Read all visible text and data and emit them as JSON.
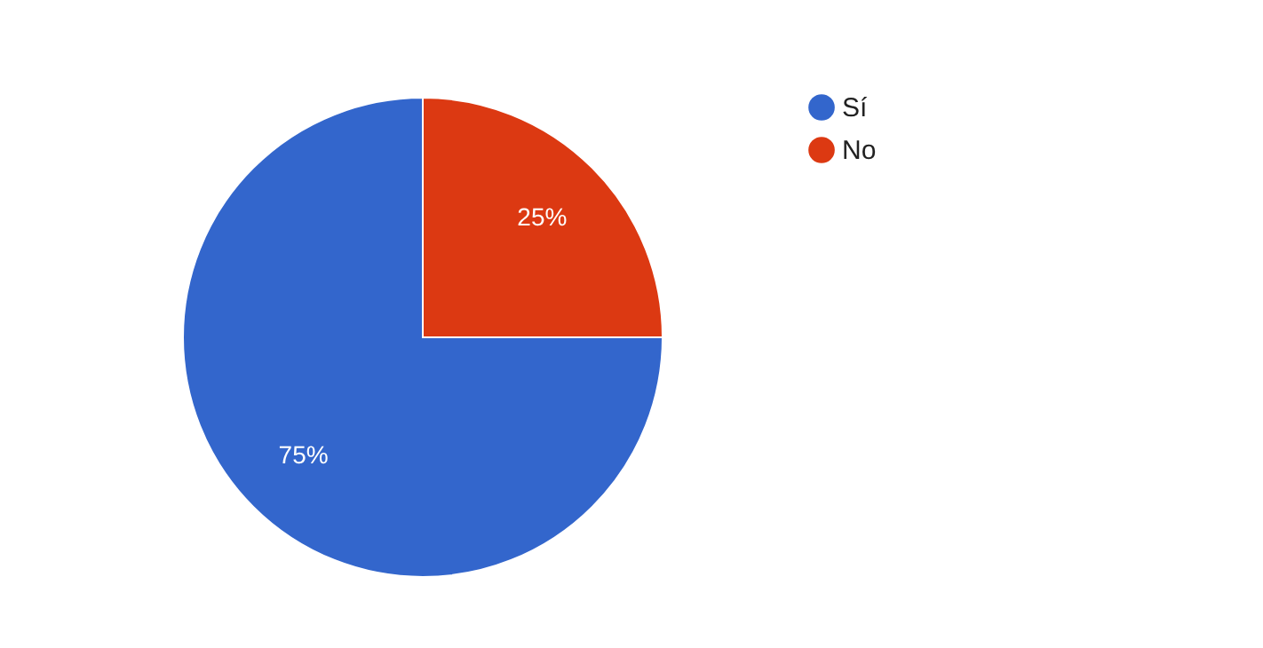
{
  "chart_data": {
    "type": "pie",
    "categories": [
      "Sí",
      "No"
    ],
    "values": [
      75,
      25
    ],
    "colors": [
      "#3366cc",
      "#dc3912"
    ],
    "value_labels": [
      "75%",
      "25%"
    ],
    "legend": "top right"
  }
}
